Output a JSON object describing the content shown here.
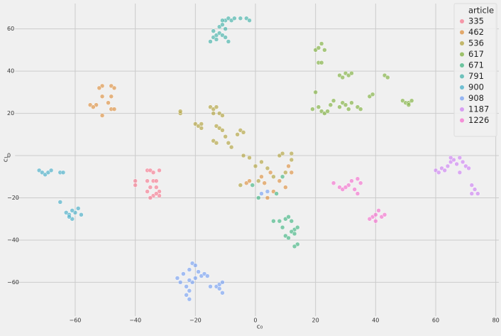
{
  "chart_data": {
    "type": "scatter",
    "x_label": "c₀",
    "y_label": "c₁",
    "legend_title": "article",
    "legend_position": "upper right",
    "grid": true,
    "xlim": [
      -80,
      81
    ],
    "ylim": [
      -76,
      72
    ],
    "xticks": [
      {
        "value": -60,
        "label": "−60"
      },
      {
        "value": -40,
        "label": "−40"
      },
      {
        "value": -20,
        "label": "−20"
      },
      0,
      20,
      40,
      60,
      80
    ],
    "yticks": [
      {
        "value": -60,
        "label": "−60"
      },
      {
        "value": -40,
        "label": "−40"
      },
      {
        "value": -20,
        "label": "−20"
      },
      0,
      20,
      40,
      60
    ],
    "series": [
      {
        "name": "335",
        "color": "#f77189",
        "x": [
          -40,
          -40,
          -36,
          -35,
          -34,
          -32,
          -36,
          -34,
          -33,
          -35,
          -33,
          -32,
          -36,
          -34,
          -32,
          -35,
          -33
        ],
        "y": [
          -12,
          -14,
          -7,
          -7,
          -8,
          -7,
          -12,
          -12,
          -12,
          -15,
          -15,
          -17,
          -17,
          -19,
          -19,
          -20,
          -18
        ]
      },
      {
        "name": "462",
        "color": "#dc8932",
        "x": [
          -51,
          -52,
          -48,
          -47,
          -51,
          -48,
          -49,
          -53,
          -55,
          -54,
          -51,
          -48,
          -47,
          2,
          5,
          8,
          10,
          12,
          3,
          6,
          -3,
          -2,
          11,
          4
        ],
        "y": [
          33,
          32,
          33,
          32,
          28,
          28,
          25,
          24,
          24,
          23,
          19,
          22,
          22,
          -10,
          -8,
          -12,
          -15,
          -8,
          -13,
          -17,
          -13,
          -12,
          -5,
          -20
        ]
      },
      {
        "name": "536",
        "color": "#ae9d31",
        "x": [
          -25,
          -25,
          -15,
          -14,
          -13,
          -14,
          -12,
          -11,
          -20,
          -19,
          -18,
          -18,
          -13,
          -12,
          -11,
          -14,
          -13,
          -10,
          -9,
          -8,
          -6,
          -5,
          -4,
          -4,
          -2,
          0,
          2,
          4,
          8,
          9,
          12,
          10,
          -5,
          1,
          6,
          12
        ],
        "y": [
          20,
          21,
          23,
          22,
          23,
          20,
          20,
          19,
          15,
          14,
          15,
          13,
          14,
          13,
          12,
          7,
          6,
          9,
          6,
          4,
          10,
          12,
          11,
          0,
          -1,
          -5,
          -3,
          -6,
          0,
          1,
          1,
          -8,
          -14,
          -12,
          -10,
          -2
        ]
      },
      {
        "name": "617",
        "color": "#77ab31",
        "x": [
          20,
          21,
          22,
          23,
          21,
          22,
          20,
          19,
          21,
          22,
          23,
          24,
          25,
          26,
          28,
          29,
          30,
          31,
          32,
          34,
          35,
          28,
          29,
          30,
          31,
          32,
          38,
          39,
          43,
          44,
          49,
          50,
          51,
          52,
          51
        ],
        "y": [
          50,
          51,
          53,
          50,
          44,
          44,
          30,
          22,
          23,
          21,
          20,
          21,
          24,
          26,
          23,
          25,
          24,
          22,
          25,
          23,
          22,
          38,
          37,
          39,
          38,
          39,
          28,
          29,
          38,
          37,
          26,
          25,
          25,
          26,
          24
        ]
      },
      {
        "name": "671",
        "color": "#33b07a",
        "x": [
          8,
          10,
          11,
          12,
          9,
          13,
          14,
          12,
          10,
          11,
          13,
          14,
          13,
          6,
          -1,
          1,
          7,
          9
        ],
        "y": [
          -31,
          -30,
          -29,
          -31,
          -34,
          -35,
          -34,
          -36,
          -38,
          -39,
          -37,
          -42,
          -43,
          -31,
          -14,
          -20,
          -18,
          -10
        ]
      },
      {
        "name": "791",
        "color": "#36ada4",
        "x": [
          -15,
          -14,
          -13,
          -14,
          -12,
          -11,
          -10,
          -9,
          -12,
          -11,
          -10,
          -9,
          -8,
          -7,
          -5,
          -3,
          -2,
          -13,
          -10,
          -11
        ],
        "y": [
          54,
          56,
          57,
          59,
          58,
          57,
          56,
          54,
          61,
          62,
          64,
          65,
          64,
          65,
          65,
          65,
          64,
          55,
          60,
          64
        ]
      },
      {
        "name": "900",
        "color": "#38a9c5",
        "x": [
          -72,
          -71,
          -70,
          -69,
          -68,
          -65,
          -64,
          -65,
          -63,
          -62,
          -61,
          -60,
          -61,
          -59,
          -58,
          -62
        ],
        "y": [
          -7,
          -8,
          -9,
          -8,
          -7,
          -8,
          -8,
          -22,
          -27,
          -28,
          -30,
          -27,
          -26,
          -25,
          -28,
          -29
        ]
      },
      {
        "name": "908",
        "color": "#6e9bf4",
        "x": [
          -21,
          -20,
          -22,
          -19,
          -24,
          -26,
          -25,
          -23,
          -22,
          -23,
          -22,
          -21,
          -18,
          -17,
          -16,
          -15,
          -13,
          -12,
          -11,
          -12,
          -11,
          -22,
          -20,
          2,
          4
        ],
        "y": [
          -51,
          -52,
          -54,
          -55,
          -56,
          -58,
          -60,
          -62,
          -64,
          -66,
          -68,
          -60,
          -57,
          -56,
          -57,
          -62,
          -62,
          -61,
          -60,
          -63,
          -65,
          -59,
          -58,
          -18,
          -17
        ]
      },
      {
        "name": "1187",
        "color": "#cc7af4",
        "x": [
          60,
          61,
          62,
          63,
          64,
          65,
          66,
          67,
          68,
          69,
          70,
          71,
          68,
          72,
          73,
          74,
          72,
          65
        ],
        "y": [
          -7,
          -8,
          -6,
          -7,
          -5,
          -3,
          -2,
          -4,
          -1,
          -3,
          -5,
          -6,
          -8,
          -14,
          -16,
          -18,
          -18,
          -1
        ]
      },
      {
        "name": "1226",
        "color": "#f565cc",
        "x": [
          26,
          28,
          29,
          31,
          32,
          33,
          34,
          35,
          34,
          30,
          39,
          40,
          41,
          42,
          43,
          40,
          38
        ],
        "y": [
          -13,
          -15,
          -16,
          -14,
          -12,
          -16,
          -11,
          -13,
          -18,
          -15,
          -29,
          -28,
          -26,
          -29,
          -28,
          -31,
          -30
        ]
      }
    ]
  }
}
